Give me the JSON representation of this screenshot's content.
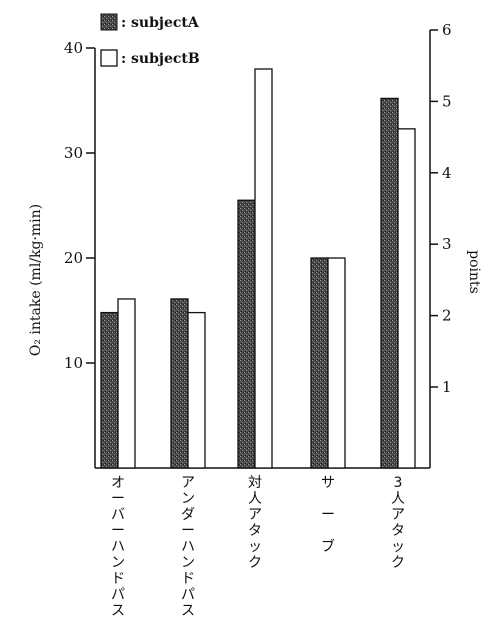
{
  "chart_data": {
    "type": "bar",
    "categories": [
      "オーバーハンドパス",
      "アンダーハンドパス",
      "対人アタック",
      "サ ー ブ",
      "3人アタック"
    ],
    "series": [
      {
        "name": "subjectA",
        "legend_label": ": subjectA",
        "color": "#3c3c3c",
        "pattern": "stipple-dark",
        "values": [
          14.8,
          16.1,
          25.5,
          20.0,
          35.2
        ]
      },
      {
        "name": "subjectB",
        "legend_label": ": subjectB",
        "color": "#ffffff",
        "pattern": "none",
        "values": [
          16.1,
          14.8,
          38.0,
          20.0,
          32.3
        ]
      }
    ],
    "ylabel": "O₂   intake (ml/kg·min)",
    "ylim": [
      0,
      40
    ],
    "yticks": [
      "10",
      "20",
      "30",
      "40"
    ],
    "y2label": "points",
    "y2lim": [
      1,
      6
    ],
    "y2ticks": [
      "1",
      "2",
      "3",
      "4",
      "5",
      "6"
    ],
    "grid": false,
    "legend_position": "top-left"
  }
}
